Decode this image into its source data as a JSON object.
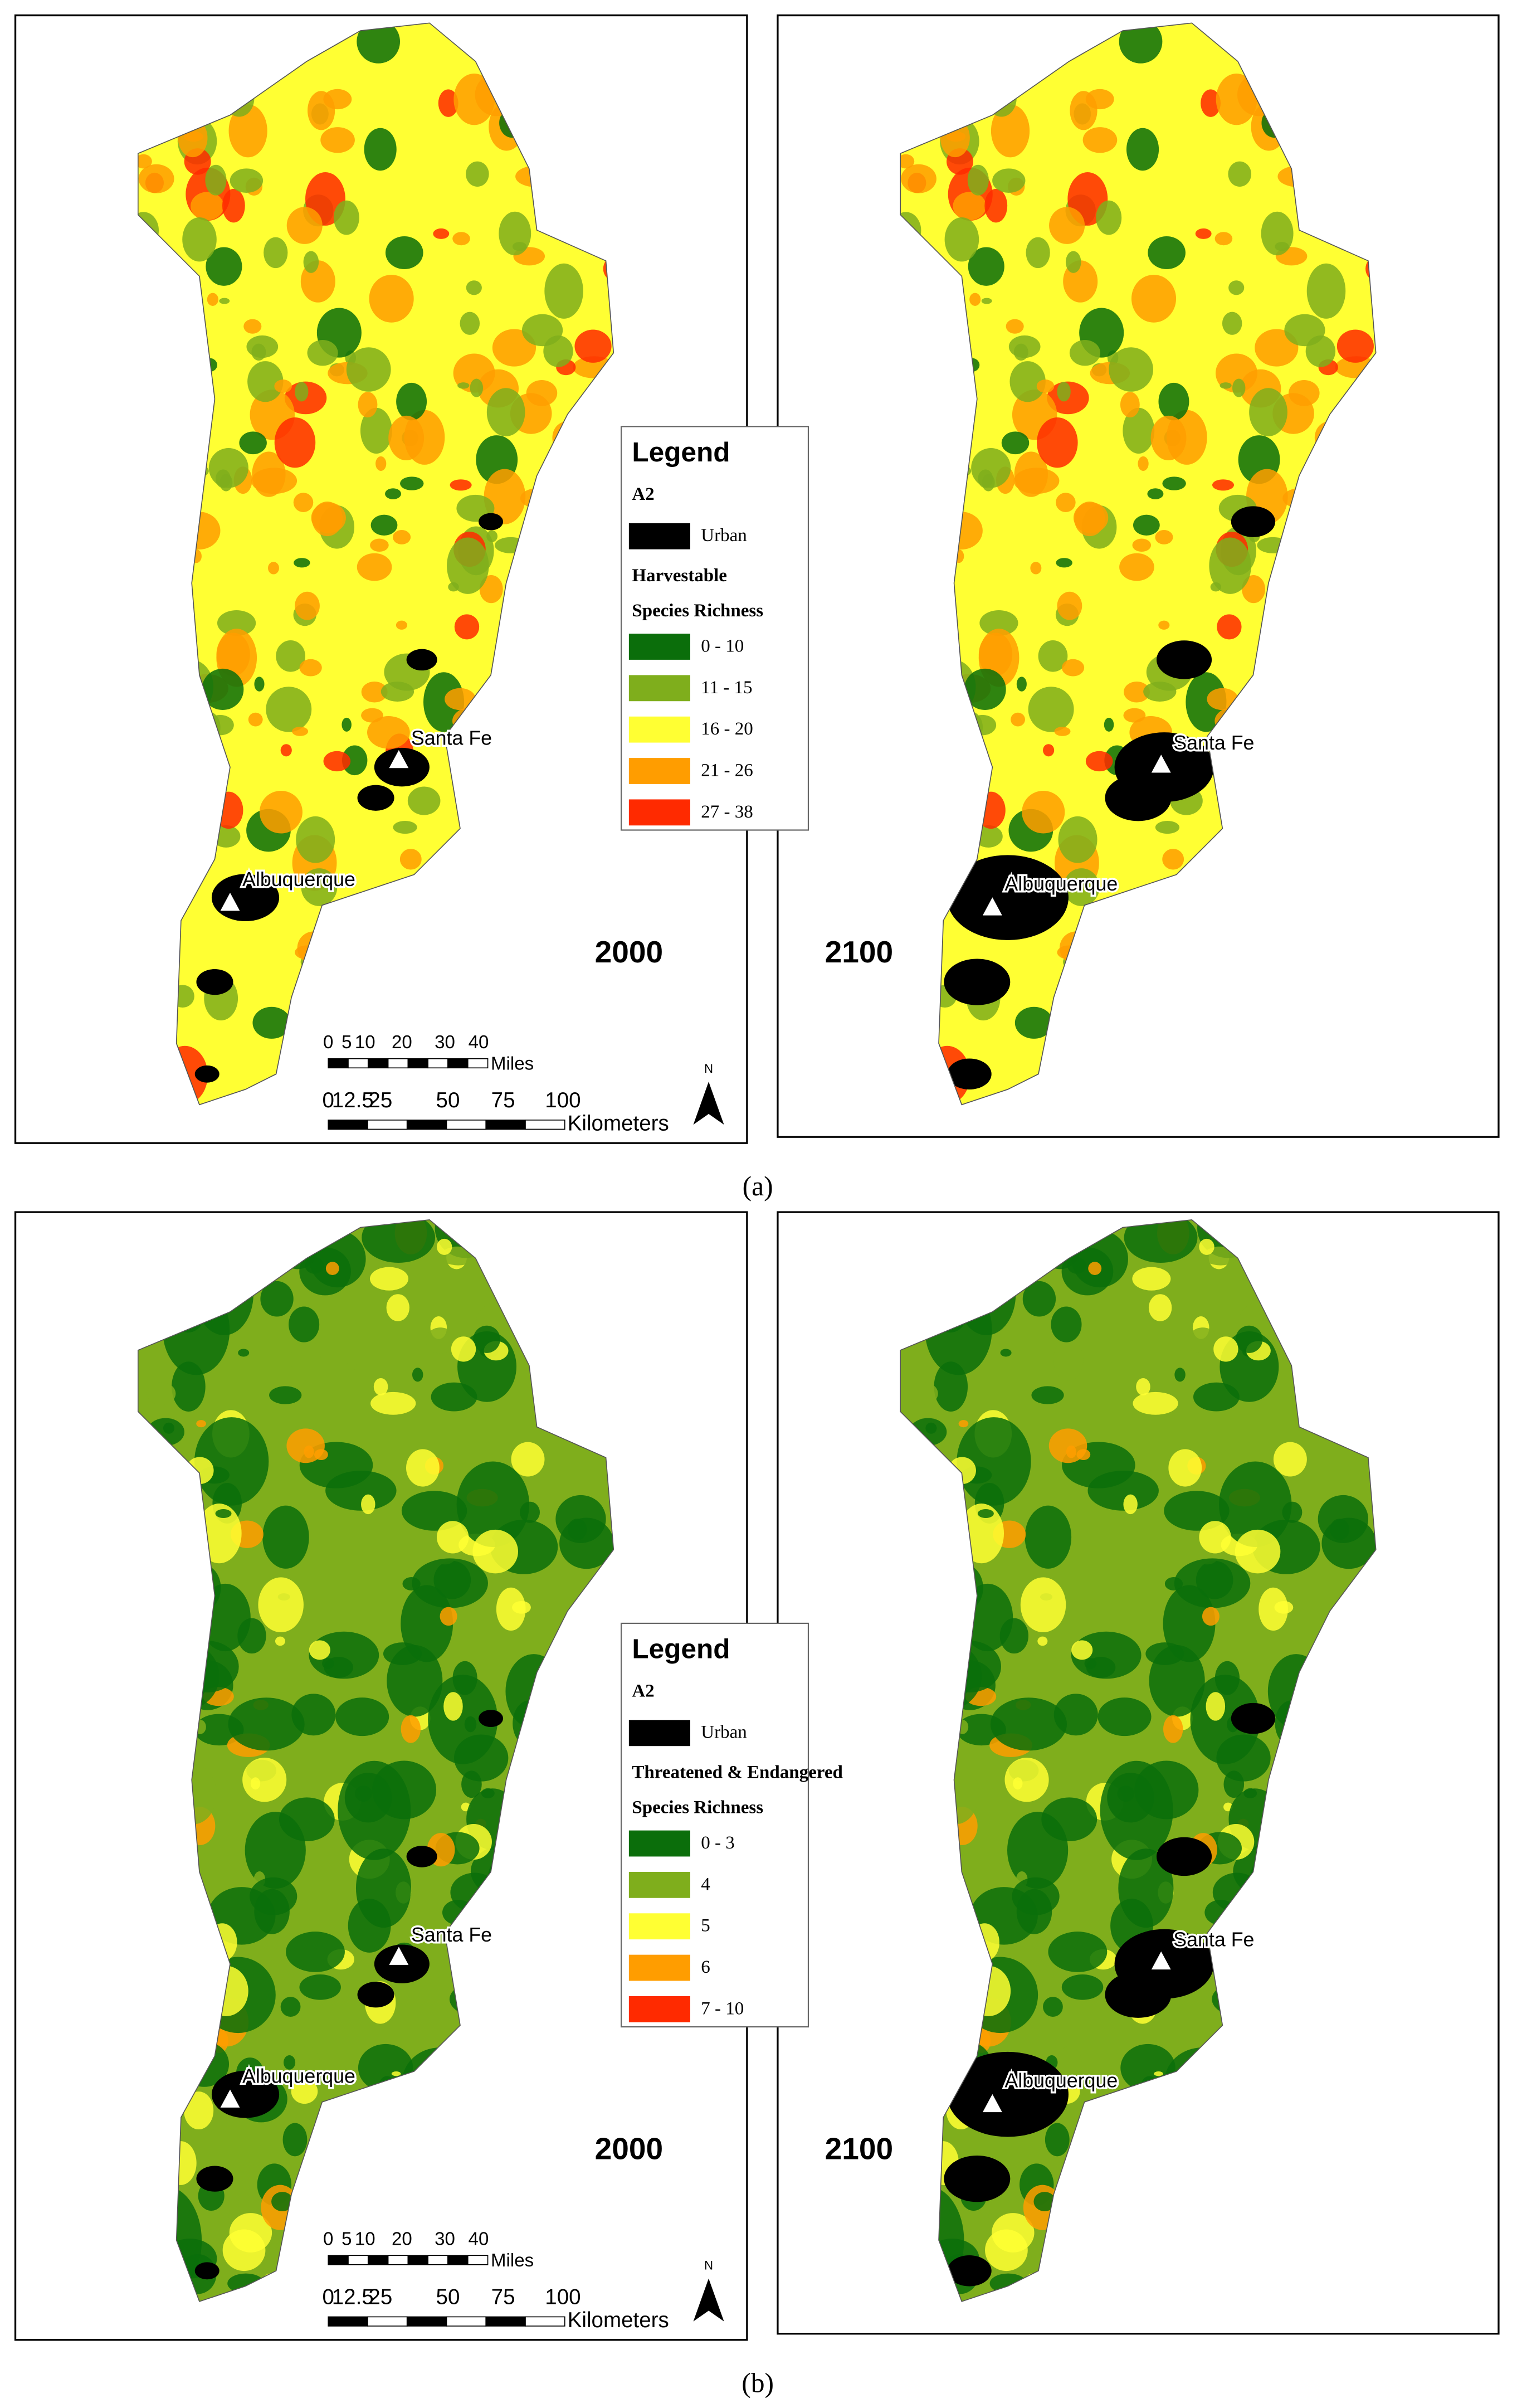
{
  "panels": [
    {
      "label": "(a)",
      "years": [
        "2000",
        "2100"
      ],
      "legend": {
        "title": "Legend",
        "scenario": "A2",
        "urban": {
          "label": "Urban",
          "color": "#000000"
        },
        "heading": [
          "Harvestable",
          "Species Richness"
        ],
        "classes": [
          {
            "label": "0 - 10",
            "color": "#0b6e0b"
          },
          {
            "label": "11 - 15",
            "color": "#7fae1c"
          },
          {
            "label": "16 - 20",
            "color": "#ffff33"
          },
          {
            "label": "21 - 26",
            "color": "#ff9d00"
          },
          {
            "label": "27 - 38",
            "color": "#ff2a00"
          }
        ]
      }
    },
    {
      "label": "(b)",
      "years": [
        "2000",
        "2100"
      ],
      "legend": {
        "title": "Legend",
        "scenario": "A2",
        "urban": {
          "label": "Urban",
          "color": "#000000"
        },
        "heading": [
          "Threatened & Endangered",
          "Species Richness"
        ],
        "classes": [
          {
            "label": "0 - 3",
            "color": "#0b6e0b"
          },
          {
            "label": "4",
            "color": "#7fae1c"
          },
          {
            "label": "5",
            "color": "#ffff33"
          },
          {
            "label": "6",
            "color": "#ff9d00"
          },
          {
            "label": "7 - 10",
            "color": "#ff2a00"
          }
        ]
      }
    }
  ],
  "cities": [
    "Santa Fe",
    "Albuquerque"
  ],
  "scale_bar": {
    "miles": {
      "ticks": [
        "0",
        "5",
        "10",
        "20",
        "30",
        "40"
      ],
      "unit": "Miles"
    },
    "kilometers": {
      "ticks": [
        "0",
        "12.5",
        "25",
        "50",
        "75",
        "100"
      ],
      "unit": "Kilometers"
    },
    "north": "N"
  }
}
